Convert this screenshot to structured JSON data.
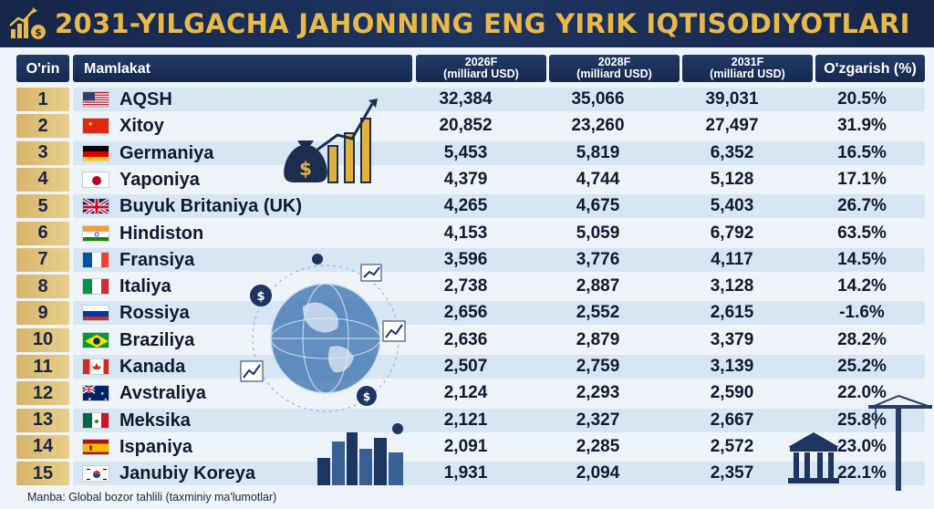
{
  "title": "2031-YILGACHA JAHONNING ENG YIRIK IQTISODIYOTLARI",
  "columns": {
    "rank": "O'rin",
    "country": "Mamlakat",
    "y2026": [
      "2026F",
      "(milliard USD)"
    ],
    "y2028": [
      "2028F",
      "(milliard USD)"
    ],
    "y2031": [
      "2031F",
      "(milliard USD)"
    ],
    "change": "O'zgarish (%)"
  },
  "rows": [
    {
      "rank": "1",
      "country": "AQSH",
      "v2026": "32,384",
      "v2028": "35,066",
      "v2031": "39,031",
      "change": "20.5%",
      "flag": "us"
    },
    {
      "rank": "2",
      "country": "Xitoy",
      "v2026": "20,852",
      "v2028": "23,260",
      "v2031": "27,497",
      "change": "31.9%",
      "flag": "cn"
    },
    {
      "rank": "3",
      "country": "Germaniya",
      "v2026": "5,453",
      "v2028": "5,819",
      "v2031": "6,352",
      "change": "16.5%",
      "flag": "de"
    },
    {
      "rank": "4",
      "country": "Yaponiya",
      "v2026": "4,379",
      "v2028": "4,744",
      "v2031": "5,128",
      "change": "17.1%",
      "flag": "jp"
    },
    {
      "rank": "5",
      "country": "Buyuk Britaniya (UK)",
      "v2026": "4,265",
      "v2028": "4,675",
      "v2031": "5,403",
      "change": "26.7%",
      "flag": "gb"
    },
    {
      "rank": "6",
      "country": "Hindiston",
      "v2026": "4,153",
      "v2028": "5,059",
      "v2031": "6,792",
      "change": "63.5%",
      "flag": "in"
    },
    {
      "rank": "7",
      "country": "Fransiya",
      "v2026": "3,596",
      "v2028": "3,776",
      "v2031": "4,117",
      "change": "14.5%",
      "flag": "fr"
    },
    {
      "rank": "8",
      "country": "Italiya",
      "v2026": "2,738",
      "v2028": "2,887",
      "v2031": "3,128",
      "change": "14.2%",
      "flag": "it"
    },
    {
      "rank": "9",
      "country": "Rossiya",
      "v2026": "2,656",
      "v2028": "2,552",
      "v2031": "2,615",
      "change": "-1.6%",
      "flag": "ru"
    },
    {
      "rank": "10",
      "country": "Braziliya",
      "v2026": "2,636",
      "v2028": "2,879",
      "v2031": "3,379",
      "change": "28.2%",
      "flag": "br"
    },
    {
      "rank": "11",
      "country": "Kanada",
      "v2026": "2,507",
      "v2028": "2,759",
      "v2031": "3,139",
      "change": "25.2%",
      "flag": "ca"
    },
    {
      "rank": "12",
      "country": "Avstraliya",
      "v2026": "2,124",
      "v2028": "2,293",
      "v2031": "2,590",
      "change": "22.0%",
      "flag": "au"
    },
    {
      "rank": "13",
      "country": "Meksika",
      "v2026": "2,121",
      "v2028": "2,327",
      "v2031": "2,667",
      "change": "25.8%",
      "flag": "mx"
    },
    {
      "rank": "14",
      "country": "Ispaniya",
      "v2026": "2,091",
      "v2028": "2,285",
      "v2031": "2,572",
      "change": "23.0%",
      "flag": "es"
    },
    {
      "rank": "15",
      "country": "Janubiy Koreya",
      "v2026": "1,931",
      "v2028": "2,094",
      "v2031": "2,357",
      "change": "22.1%",
      "flag": "kr"
    }
  ],
  "source": "Manba: Global bozor tahlili (taxminiy ma'lumotlar)",
  "chart_data": {
    "type": "table",
    "title": "2031-YILGACHA JAHONNING ENG YIRIK IQTISODIYOTLARI",
    "columns": [
      "O'rin",
      "Mamlakat",
      "2026F (milliard USD)",
      "2028F (milliard USD)",
      "2031F (milliard USD)",
      "O'zgarish (%)"
    ],
    "categories": [
      "AQSH",
      "Xitoy",
      "Germaniya",
      "Yaponiya",
      "Buyuk Britaniya (UK)",
      "Hindiston",
      "Fransiya",
      "Italiya",
      "Rossiya",
      "Braziliya",
      "Kanada",
      "Avstraliya",
      "Meksika",
      "Ispaniya",
      "Janubiy Koreya"
    ],
    "series": [
      {
        "name": "2026F (milliard USD)",
        "values": [
          32384,
          20852,
          5453,
          4379,
          4265,
          4153,
          3596,
          2738,
          2656,
          2636,
          2507,
          2124,
          2121,
          2091,
          1931
        ]
      },
      {
        "name": "2028F (milliard USD)",
        "values": [
          35066,
          23260,
          5819,
          4744,
          4675,
          5059,
          3776,
          2887,
          2552,
          2879,
          2759,
          2293,
          2327,
          2285,
          2094
        ]
      },
      {
        "name": "2031F (milliard USD)",
        "values": [
          39031,
          27497,
          6352,
          5128,
          5403,
          6792,
          4117,
          3128,
          2615,
          3379,
          3139,
          2590,
          2667,
          2572,
          2357
        ]
      },
      {
        "name": "O'zgarish (%)",
        "values": [
          20.5,
          31.9,
          16.5,
          17.1,
          26.7,
          63.5,
          14.5,
          14.2,
          -1.6,
          28.2,
          25.2,
          22.0,
          25.8,
          23.0,
          22.1
        ]
      }
    ]
  },
  "colors": {
    "title_bg": "#16264a",
    "title_text": "#e8b948",
    "rank_gold": "#d7b46a",
    "row_blue": "#d6e6f3"
  },
  "icons": [
    "chart-growth-icon",
    "money-bag-icon",
    "globe-network-icon",
    "city-skyline-icon",
    "bank-icon",
    "crane-icon"
  ]
}
